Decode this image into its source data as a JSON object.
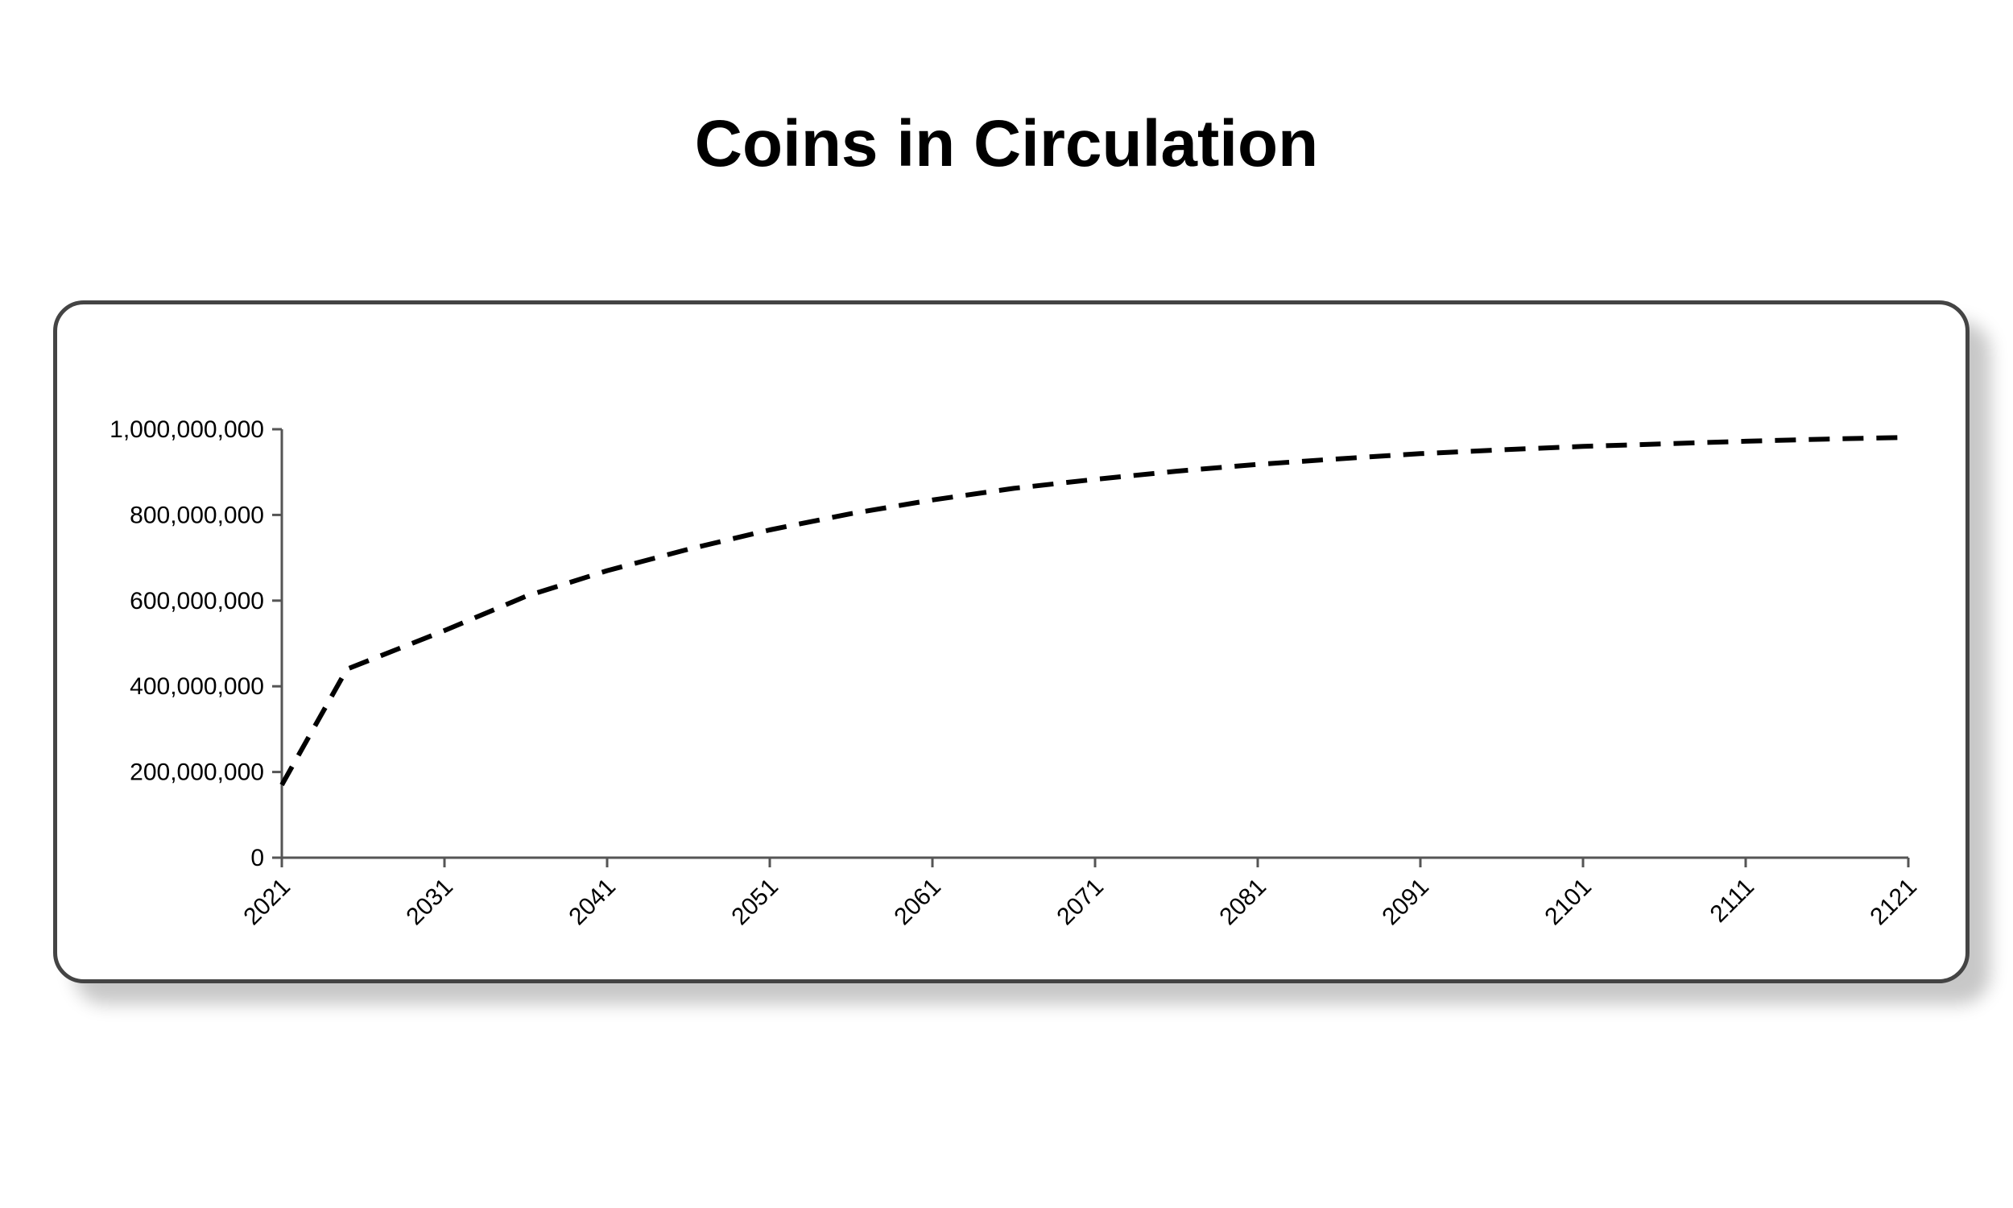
{
  "chart_data": {
    "type": "line",
    "title": "Coins in Circulation",
    "xlabel": "",
    "ylabel": "",
    "xlim": [
      2021,
      2121
    ],
    "ylim": [
      0,
      1000000000
    ],
    "x_ticks": [
      "2021",
      "2031",
      "2041",
      "2051",
      "2061",
      "2071",
      "2081",
      "2091",
      "2101",
      "2111",
      "2121"
    ],
    "y_ticks": [
      "0",
      "200,000,000",
      "400,000,000",
      "600,000,000",
      "800,000,000",
      "1,000,000,000"
    ],
    "y_tick_values": [
      0,
      200000000,
      400000000,
      600000000,
      800000000,
      1000000000
    ],
    "grid": false,
    "legend": "none",
    "line_style": "dashed",
    "line_color": "#000000",
    "series": [
      {
        "x": [
          2021,
          2025,
          2031,
          2036,
          2041,
          2046,
          2051,
          2056,
          2061,
          2066,
          2071,
          2076,
          2081,
          2086,
          2091,
          2096,
          2101,
          2106,
          2111,
          2116,
          2121
        ],
        "values": [
          170000000,
          440000000,
          530000000,
          610000000,
          670000000,
          720000000,
          765000000,
          803000000,
          835000000,
          862000000,
          883000000,
          902000000,
          918000000,
          931000000,
          943000000,
          952000000,
          960000000,
          966000000,
          972000000,
          977000000,
          981000000
        ]
      }
    ]
  }
}
